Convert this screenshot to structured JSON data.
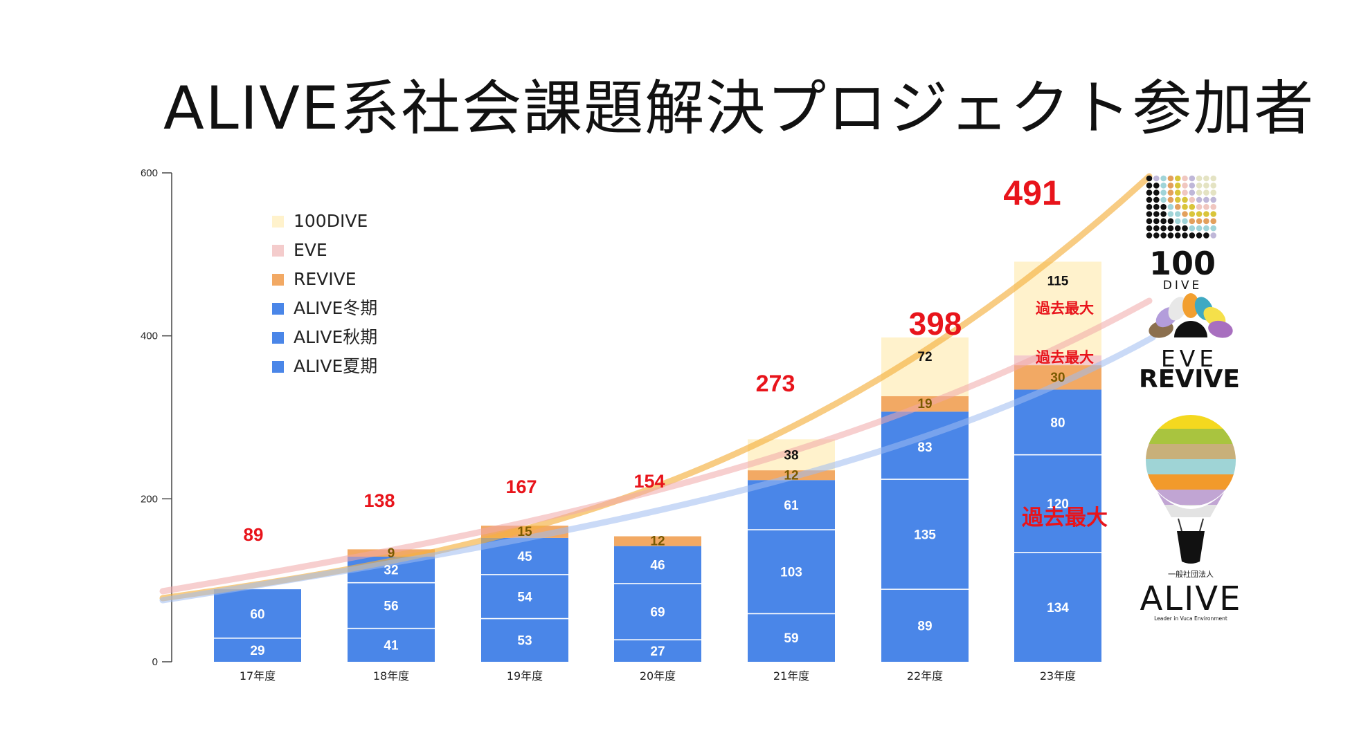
{
  "title": "ALIVE系社会課題解決プロジェクト参加者",
  "colors": {
    "alive": "#4a86e8",
    "revive": "#f2a964",
    "eve": "#f4cccc",
    "dive": "#fff2cc",
    "total": "#e8141b",
    "revive_label": "#7a5a00",
    "white_label": "#ffffff",
    "dark_label": "#111111"
  },
  "chart_data": {
    "type": "bar",
    "stacked": true,
    "categories": [
      "17年度",
      "18年度",
      "19年度",
      "20年度",
      "21年度",
      "22年度",
      "23年度"
    ],
    "ylim": [
      0,
      600
    ],
    "yticks": [
      0,
      200,
      400,
      600
    ],
    "series": [
      {
        "name": "ALIVE夏期",
        "values": [
          29,
          41,
          53,
          27,
          59,
          89,
          134
        ]
      },
      {
        "name": "ALIVE秋期",
        "values": [
          60,
          56,
          54,
          69,
          103,
          135,
          120
        ]
      },
      {
        "name": "ALIVE冬期",
        "values": [
          0,
          32,
          45,
          46,
          61,
          83,
          80
        ]
      },
      {
        "name": "REVIVE",
        "values": [
          0,
          9,
          15,
          12,
          12,
          19,
          30
        ]
      },
      {
        "name": "EVE",
        "values": [
          0,
          0,
          0,
          0,
          0,
          0,
          12
        ]
      },
      {
        "name": "100DIVE",
        "values": [
          0,
          0,
          0,
          0,
          38,
          72,
          115
        ]
      }
    ],
    "totals": [
      89,
      138,
      167,
      154,
      273,
      398,
      491
    ],
    "legend": [
      "100DIVE",
      "EVE",
      "REVIVE",
      "ALIVE冬期",
      "ALIVE秋期",
      "ALIVE夏期"
    ],
    "legend_position": "top-left",
    "annotations": [
      "過去最大",
      "過去最大",
      "過去最大"
    ],
    "trendlines": [
      {
        "name": "total-trend",
        "color": "#f5b041"
      },
      {
        "name": "eve-trend",
        "color": "#f1a7a7"
      },
      {
        "name": "alive-trend",
        "color": "#9fbcf0"
      }
    ]
  },
  "logos": {
    "dive": {
      "line1": "100",
      "line2": "DIVE"
    },
    "eve": {
      "line1": "EVE",
      "line2": "REVIVE"
    },
    "alive": {
      "caption": "一般社団法人",
      "name": "ALIVE",
      "tagline": "Leader in Vuca Environment"
    }
  }
}
